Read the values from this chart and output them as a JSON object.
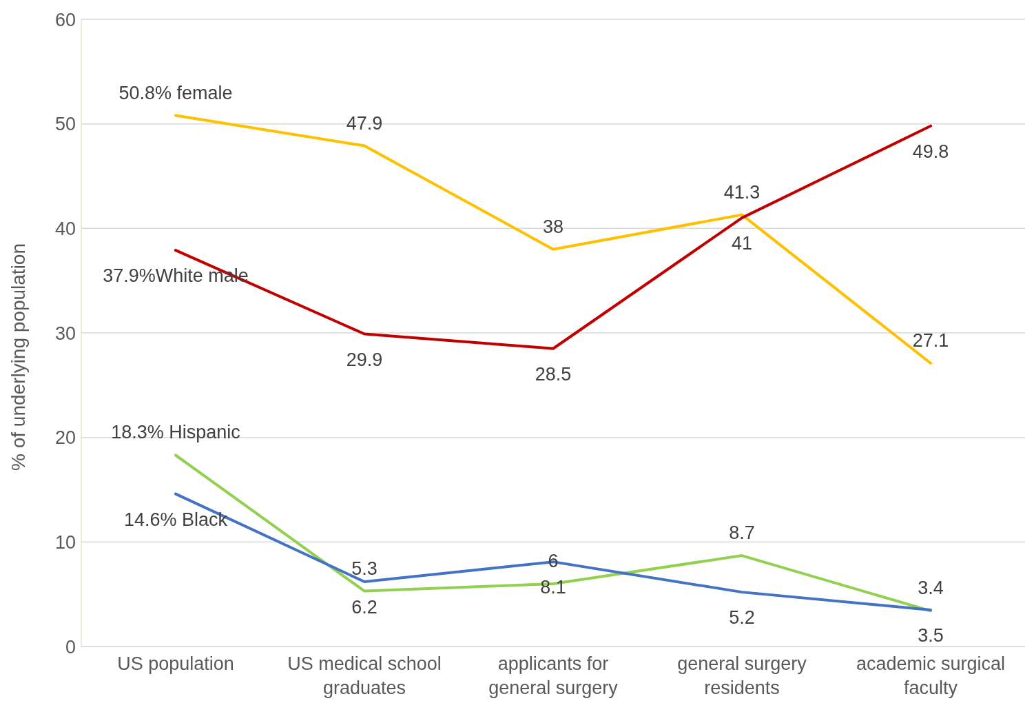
{
  "chart_data": {
    "type": "line",
    "ylabel": "% of underlying population",
    "categories": [
      "US population",
      "US medical school graduates",
      "applicants for general surgery",
      "general surgery residents",
      "academic surgical faculty"
    ],
    "series": [
      {
        "color": "#ffc000",
        "values": [
          50.8,
          47.9,
          38,
          41.3,
          27.1
        ],
        "value_labels": [
          "50.8% female",
          "47.9",
          "38",
          "41.3",
          "27.1"
        ]
      },
      {
        "color": "#c00000",
        "values": [
          37.9,
          29.9,
          28.5,
          41,
          49.8
        ],
        "value_labels": [
          "37.9%White male",
          "29.9",
          "28.5",
          "41",
          "49.8"
        ]
      },
      {
        "color": "#92d050",
        "values": [
          18.3,
          5.3,
          6,
          8.7,
          3.4
        ],
        "value_labels": [
          "18.3% Hispanic",
          "5.3",
          "6",
          "8.7",
          "3.4"
        ]
      },
      {
        "color": "#4472c4",
        "values": [
          14.6,
          6.2,
          8.1,
          5.2,
          3.5
        ],
        "value_labels": [
          "14.6% Black",
          "6.2",
          "8.1",
          "5.2",
          "3.5"
        ]
      }
    ],
    "ylim": [
      0,
      60
    ],
    "yticks": [
      0,
      10,
      20,
      30,
      40,
      50,
      60
    ],
    "grid": "y",
    "legend": false,
    "marker": "none",
    "line_style": "solid"
  }
}
